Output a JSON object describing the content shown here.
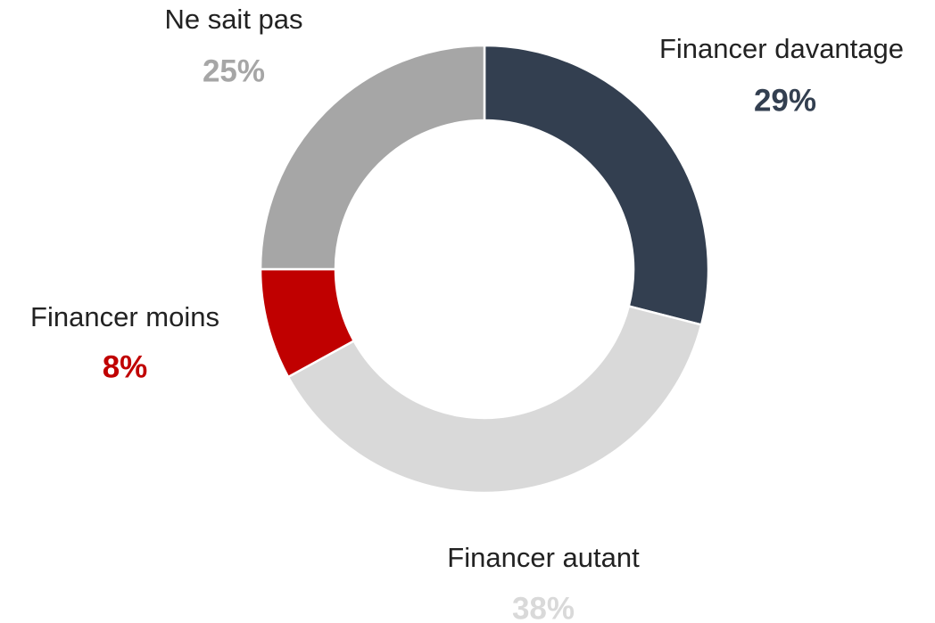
{
  "chart_data": {
    "type": "donut",
    "categories": [
      "Financer davantage",
      "Financer autant",
      "Financer moins",
      "Ne sait pas"
    ],
    "values": [
      29,
      38,
      8,
      25
    ],
    "value_labels": [
      "29%",
      "38%",
      "8%",
      "25%"
    ],
    "colors": [
      "#333f50",
      "#d9d9d9",
      "#c00000",
      "#a6a6a6"
    ]
  }
}
